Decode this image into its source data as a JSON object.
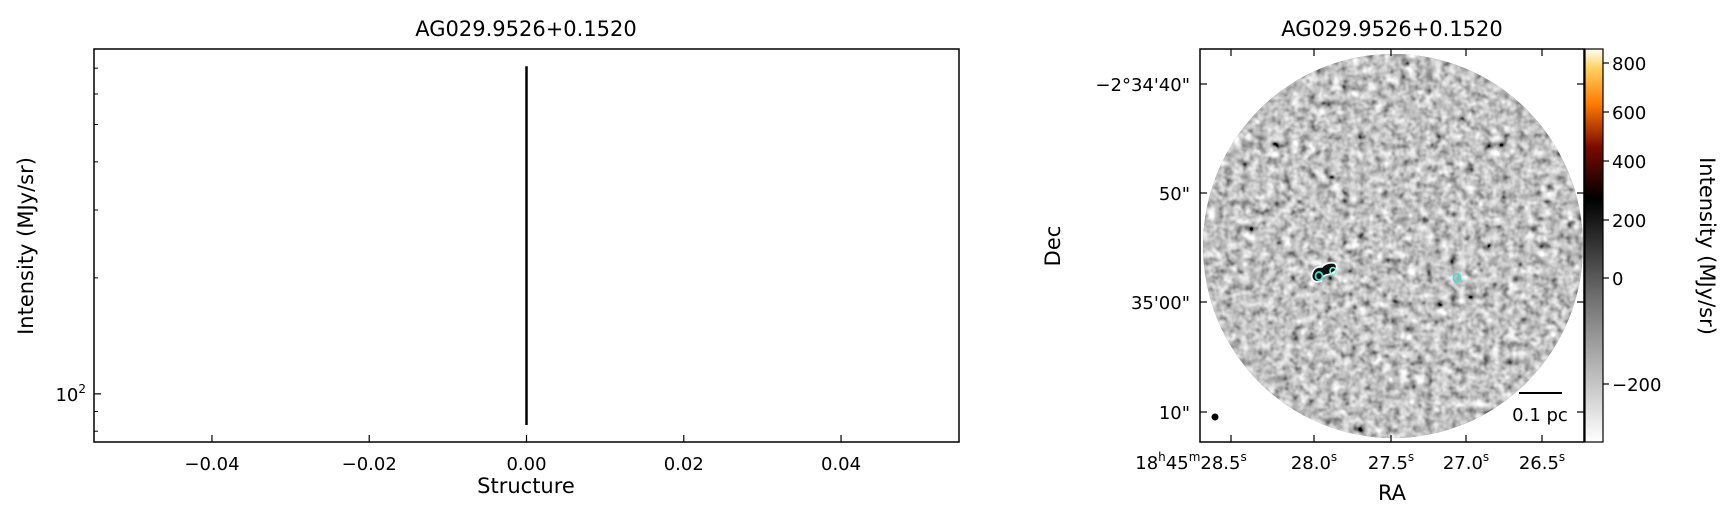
{
  "chart_data": [
    {
      "type": "line",
      "title": "AG029.9526+0.1520",
      "xlabel": "Structure",
      "ylabel": "Intensity (MJy/sr)",
      "xlim": [
        -0.055,
        0.055
      ],
      "ylim": [
        75,
        785
      ],
      "yscale": "log",
      "xticks": [
        "−0.04",
        "−0.02",
        "0.00",
        "0.02",
        "0.04"
      ],
      "xtick_values": [
        -0.04,
        -0.02,
        0,
        0.02,
        0.04
      ],
      "yticks": [
        {
          "value": 100,
          "label": "10",
          "exp": "2"
        }
      ],
      "series": [
        {
          "x": [
            0,
            0
          ],
          "y": [
            83,
            708
          ],
          "color": "#000000"
        }
      ],
      "grid": false
    },
    {
      "type": "heatmap",
      "title": "AG029.9526+0.1520",
      "xlabel": "RA",
      "ylabel": "Dec",
      "xticks": [
        {
          "h": "18",
          "m": "45",
          "s": "28.5"
        },
        {
          "s": "28.0"
        },
        {
          "s": "27.5"
        },
        {
          "s": "27.0"
        },
        {
          "s": "26.5"
        }
      ],
      "yticks": [
        "−2°34'40\"",
        "50\"",
        "35'00\"",
        "10\""
      ],
      "colorbar": {
        "label": "Intensity (MJy/sr)",
        "ticks": [
          "800",
          "600",
          "400",
          "200",
          "0",
          "−200"
        ],
        "tick_values": [
          800,
          600,
          400,
          200,
          0,
          -200
        ],
        "range": [
          -300,
          850
        ],
        "colormap": "gray-to-afmhot"
      },
      "scalebar_label": "0.1 pc",
      "contour_color": "#ffffff",
      "source_marker_color": "#40e0d0"
    }
  ]
}
